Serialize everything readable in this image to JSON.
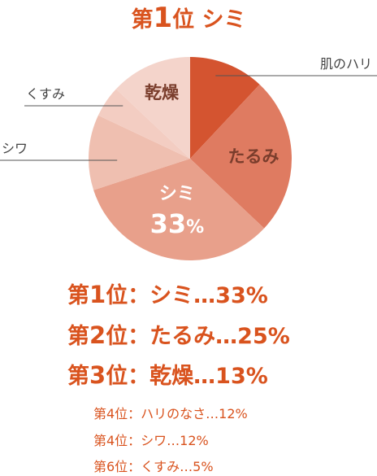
{
  "title": {
    "rank_prefix": "第",
    "rank_number": "1",
    "rank_suffix": "位",
    "name": "シミ"
  },
  "chart_data": {
    "type": "pie",
    "slices": [
      {
        "label": "肌のハリ",
        "value": 12,
        "color": "#d45430"
      },
      {
        "label": "たるみ",
        "value": 25,
        "color": "#df7b61"
      },
      {
        "label": "シミ",
        "value": 33,
        "color": "#e8a08b",
        "value_label": "33",
        "unit": "%"
      },
      {
        "label": "シワ",
        "value": 12,
        "color": "#efbfb0"
      },
      {
        "label": "くすみ",
        "value": 5,
        "color": "#f3cdc2"
      },
      {
        "label": "乾燥",
        "value": 13,
        "color": "#f4d4cb"
      }
    ]
  },
  "ranking_major": [
    {
      "prefix": "第",
      "num": "1",
      "suffix": "位：シミ…33%"
    },
    {
      "prefix": "第",
      "num": "2",
      "suffix": "位：たるみ…25%"
    },
    {
      "prefix": "第",
      "num": "3",
      "suffix": "位：乾燥…13%"
    }
  ],
  "ranking_minor": [
    "第4位：ハリのなさ…12%",
    "第4位：シワ…12%",
    "第6位：くすみ…5%"
  ]
}
